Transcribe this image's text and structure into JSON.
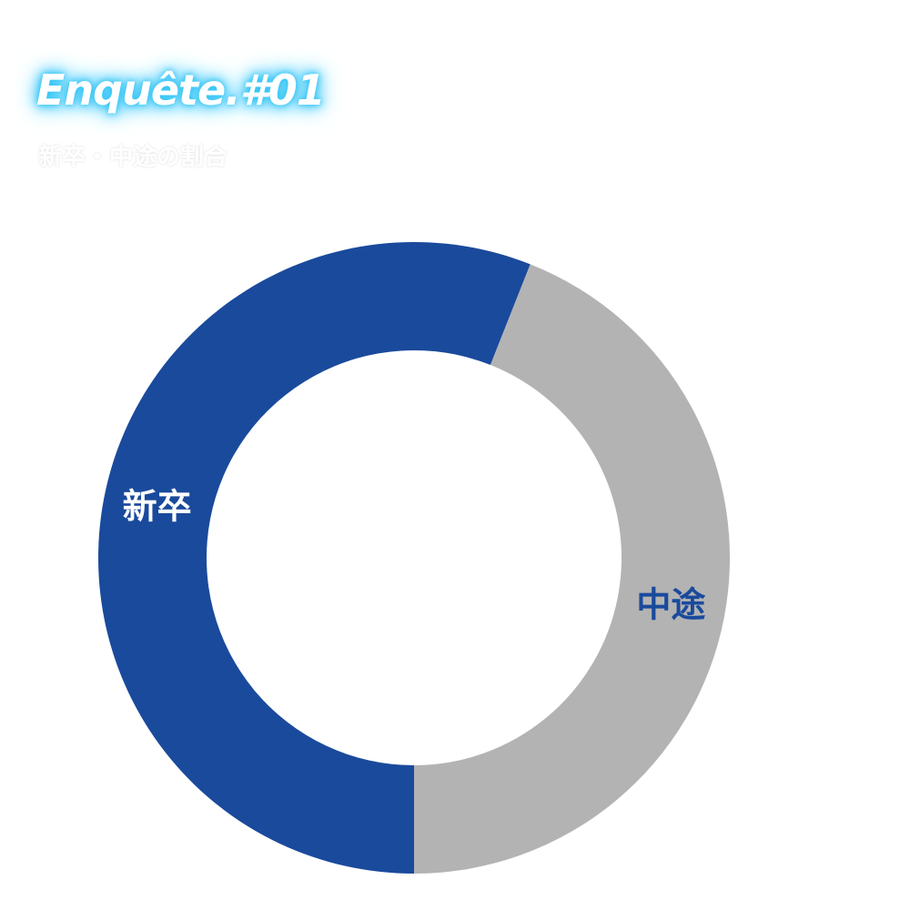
{
  "header": {
    "title": "Enquête.#01",
    "subtitle": "新卒・中途の割合"
  },
  "chart_data": {
    "type": "pie",
    "title": "",
    "donut": true,
    "slices": [
      {
        "label": "新卒",
        "value": 56,
        "color": "#1a4a9c",
        "label_color": "#ffffff"
      },
      {
        "label": "中途",
        "value": 44,
        "color": "#b3b3b3",
        "label_color": "#1a4a9c"
      }
    ],
    "start_angle_deg": 180,
    "direction": "clockwise",
    "background": "#ffffff"
  }
}
